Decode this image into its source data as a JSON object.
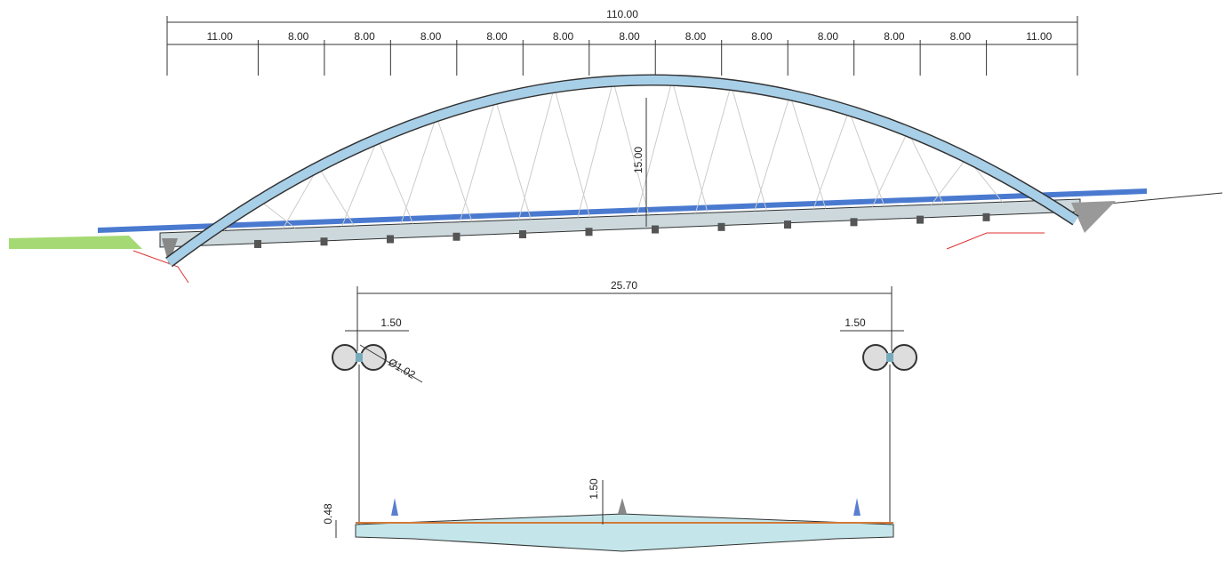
{
  "elevation": {
    "total_length": "110.00",
    "spans": [
      "11.00",
      "8.00",
      "8.00",
      "8.00",
      "8.00",
      "8.00",
      "8.00",
      "8.00",
      "8.00",
      "8.00",
      "8.00",
      "8.00",
      "11.00"
    ],
    "arch_rise": "15.00"
  },
  "section": {
    "deck_width": "25.70",
    "left_offset": "1.50",
    "right_offset": "1.50",
    "tube_diameter": "Ø1.02",
    "edge_depth": "0.48",
    "center_height": "1.50"
  }
}
